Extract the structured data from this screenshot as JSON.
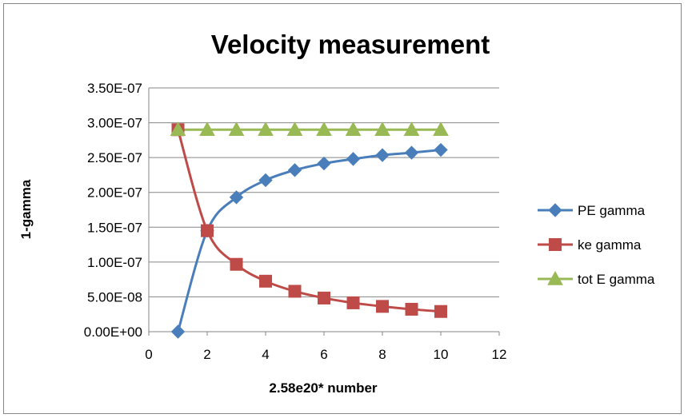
{
  "chart_data": {
    "type": "line",
    "title": "Velocity measurement",
    "xlabel": "2.58e20* number",
    "ylabel": "1-gamma",
    "xlim": [
      0,
      12
    ],
    "ylim": [
      0,
      3.5e-07
    ],
    "x_ticks": [
      0,
      2,
      4,
      6,
      8,
      10,
      12
    ],
    "x_tick_labels": [
      "0",
      "2",
      "4",
      "6",
      "8",
      "10",
      "12"
    ],
    "y_ticks": [
      0,
      5e-08,
      1e-07,
      1.5e-07,
      2e-07,
      2.5e-07,
      3e-07,
      3.5e-07
    ],
    "y_tick_labels": [
      "0.00E+00",
      "5.00E-08",
      "1.00E-07",
      "1.50E-07",
      "2.00E-07",
      "2.50E-07",
      "3.00E-07",
      "3.50E-07"
    ],
    "grid": "horizontal",
    "legend_position": "right",
    "x": [
      1,
      2,
      3,
      4,
      5,
      6,
      7,
      8,
      9,
      10
    ],
    "series": [
      {
        "name": "PE gamma",
        "color": "#4a7ebb",
        "marker": "diamond",
        "values": [
          0,
          1.45e-07,
          1.93e-07,
          2.175e-07,
          2.32e-07,
          2.415e-07,
          2.48e-07,
          2.535e-07,
          2.57e-07,
          2.61e-07
        ]
      },
      {
        "name": "ke gamma",
        "color": "#be4b48",
        "marker": "square",
        "values": [
          2.9e-07,
          1.45e-07,
          9.67e-08,
          7.25e-08,
          5.8e-08,
          4.83e-08,
          4.14e-08,
          3.63e-08,
          3.22e-08,
          2.9e-08
        ]
      },
      {
        "name": "tot E gamma",
        "color": "#98b954",
        "marker": "triangle",
        "values": [
          2.9e-07,
          2.9e-07,
          2.9e-07,
          2.9e-07,
          2.9e-07,
          2.9e-07,
          2.9e-07,
          2.9e-07,
          2.9e-07,
          2.9e-07
        ]
      }
    ]
  }
}
